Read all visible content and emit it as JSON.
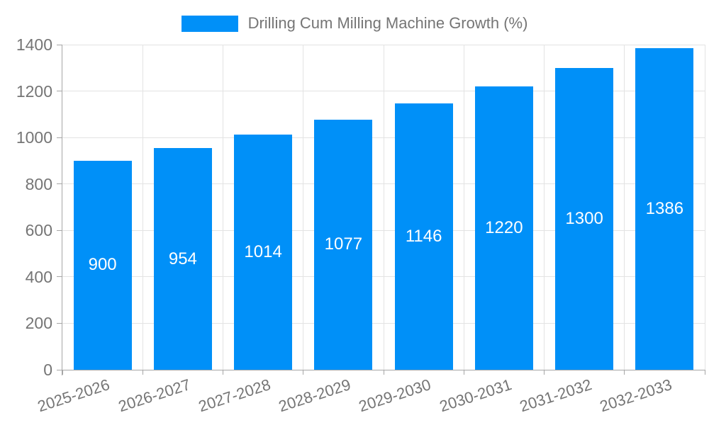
{
  "chart_data": {
    "type": "bar",
    "title": "Drilling Cum Milling Machine Growth (%)",
    "categories": [
      "2025-2026",
      "2026-2027",
      "2027-2028",
      "2028-2029",
      "2029-2030",
      "2030-2031",
      "2031-2032",
      "2032-2033"
    ],
    "values": [
      900,
      954,
      1014,
      1077,
      1146,
      1220,
      1300,
      1386
    ],
    "xlabel": "",
    "ylabel": "",
    "ylim": [
      0,
      1400
    ],
    "ytick_step": 200,
    "yticks": [
      0,
      200,
      400,
      600,
      800,
      1000,
      1200,
      1400
    ],
    "grid": true,
    "legend_position": "top",
    "colors": {
      "bar": "#0090f8",
      "value_label": "#ffffff",
      "axis_text": "#757575",
      "grid_line": "#e3e3e3",
      "axis_line": "#a6a6a6",
      "background": "#ffffff"
    }
  }
}
